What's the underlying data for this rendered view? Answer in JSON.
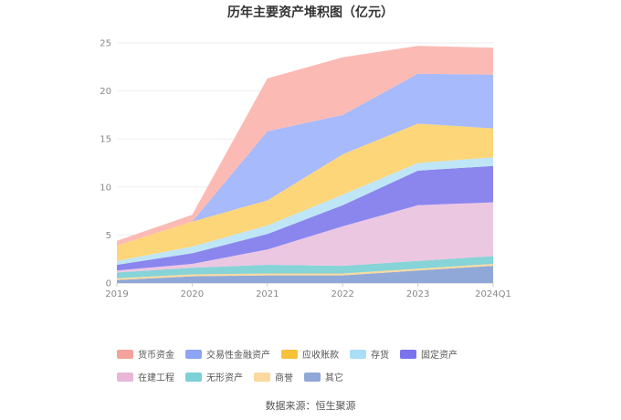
{
  "chart_data": {
    "type": "area",
    "stacked": true,
    "title": "历年主要资产堆积图（亿元）",
    "categories": [
      "2019",
      "2020",
      "2021",
      "2022",
      "2023",
      "2024Q1"
    ],
    "ylim": [
      0,
      25
    ],
    "yticks": [
      0,
      5,
      10,
      15,
      20,
      25
    ],
    "grid": true,
    "legend_position": "bottom",
    "series": [
      {
        "name": "其它",
        "color": "#8fa8d8",
        "values": [
          0.3,
          0.7,
          0.8,
          0.8,
          1.3,
          1.8
        ]
      },
      {
        "name": "商誉",
        "color": "#fbd99d",
        "values": [
          0.2,
          0.2,
          0.2,
          0.2,
          0.2,
          0.2
        ]
      },
      {
        "name": "无形资产",
        "color": "#86d3d8",
        "values": [
          0.6,
          0.7,
          0.9,
          0.8,
          0.8,
          0.8
        ]
      },
      {
        "name": "在建工程",
        "color": "#ecc7e1",
        "values": [
          0.2,
          0.4,
          1.6,
          4.1,
          5.8,
          5.6
        ]
      },
      {
        "name": "固定资产",
        "color": "#8a86ee",
        "values": [
          0.6,
          1.1,
          1.6,
          2.2,
          3.6,
          3.8
        ]
      },
      {
        "name": "存货",
        "color": "#bfe6f7",
        "values": [
          0.4,
          0.7,
          0.9,
          1.1,
          0.8,
          0.9
        ]
      },
      {
        "name": "应收账款",
        "color": "#fdd679",
        "values": [
          1.6,
          2.6,
          2.6,
          4.2,
          4.1,
          3.0
        ]
      },
      {
        "name": "交易性金融资产",
        "color": "#a7bafb",
        "values": [
          0.0,
          0.0,
          7.2,
          4.1,
          5.2,
          5.6
        ]
      },
      {
        "name": "货币资金",
        "color": "#fcbab4",
        "values": [
          0.5,
          0.7,
          5.5,
          6.0,
          2.9,
          2.8
        ]
      }
    ],
    "legend_order": [
      "货币资金",
      "交易性金融资产",
      "应收账款",
      "存货",
      "固定资产",
      "在建工程",
      "无形资产",
      "商誉",
      "其它"
    ],
    "legend_colors": {
      "货币资金": "#f4a39b",
      "交易性金融资产": "#8ea5f6",
      "应收账款": "#f8c13a",
      "存货": "#a9def6",
      "固定资产": "#7b73ec",
      "在建工程": "#e8b6d8",
      "无形资产": "#7dd0d6",
      "商誉": "#fbd99d",
      "其它": "#8fa8d8"
    }
  },
  "source_text": "数据来源：恒生聚源"
}
